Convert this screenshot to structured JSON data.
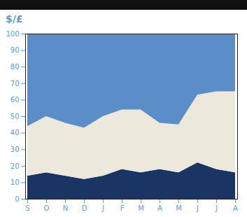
{
  "chart_data": {
    "type": "area",
    "title": "$/£",
    "categories": [
      "S",
      "O",
      "N",
      "D",
      "J",
      "F",
      "M",
      "A",
      "M",
      "J",
      "J",
      "A"
    ],
    "stacked": true,
    "series": [
      {
        "color": "#1a3464",
        "values": [
          14,
          16,
          14,
          12,
          14,
          18,
          16,
          18,
          16,
          22,
          18,
          16
        ]
      },
      {
        "color": "#ede8dc",
        "values": [
          30,
          34,
          32,
          31,
          36,
          36,
          38,
          28,
          29,
          41,
          47,
          49
        ]
      },
      {
        "color": "#5b8dc8",
        "values": [
          56,
          50,
          54,
          57,
          50,
          46,
          46,
          54,
          55,
          37,
          35,
          35
        ]
      }
    ],
    "ylim": [
      0,
      100
    ],
    "yticks": [
      0,
      10,
      20,
      30,
      40,
      50,
      60,
      70,
      80,
      90,
      100
    ],
    "grid": false
  }
}
